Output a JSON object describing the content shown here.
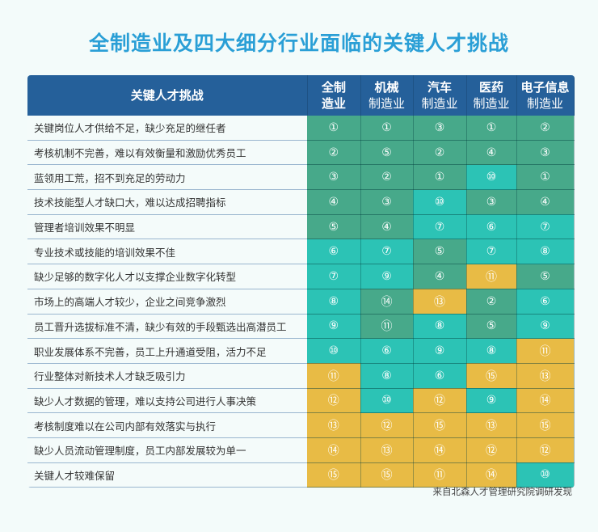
{
  "title": "全制造业及四大细分行业面临的关键人才挑战",
  "source": "来自北森人才管理研究院调研发现",
  "colors": {
    "G": "#47a98a",
    "T": "#2cc3b5",
    "Y": "#e8bb45",
    "header": "#25609a",
    "title": "#2a9fd6"
  },
  "chart_data": {
    "type": "table",
    "row_header": "关键人才挑战",
    "columns": [
      {
        "l1": "全制",
        "l2": "造业"
      },
      {
        "l1": "机械",
        "l2": "制造业"
      },
      {
        "l1": "汽车",
        "l2": "制造业"
      },
      {
        "l1": "医药",
        "l2": "制造业"
      },
      {
        "l1": "电子信息",
        "l2": "制造业"
      }
    ],
    "rows": [
      {
        "label": "关键岗位人才供给不足，缺少充足的继任者",
        "ranks": [
          "①",
          "①",
          "③",
          "①",
          "②"
        ],
        "colors": [
          "G",
          "G",
          "G",
          "G",
          "G"
        ]
      },
      {
        "label": "考核机制不完善，难以有效衡量和激励优秀员工",
        "ranks": [
          "②",
          "⑤",
          "②",
          "④",
          "③"
        ],
        "colors": [
          "G",
          "G",
          "G",
          "G",
          "G"
        ]
      },
      {
        "label": "蓝领用工荒，招不到充足的劳动力",
        "ranks": [
          "③",
          "②",
          "①",
          "⑩",
          "①"
        ],
        "colors": [
          "G",
          "G",
          "G",
          "T",
          "G"
        ]
      },
      {
        "label": "技术技能型人才缺口大，难以达成招聘指标",
        "ranks": [
          "④",
          "③",
          "⑩",
          "③",
          "④"
        ],
        "colors": [
          "G",
          "G",
          "T",
          "G",
          "G"
        ]
      },
      {
        "label": "管理者培训效果不明显",
        "ranks": [
          "⑤",
          "④",
          "⑦",
          "⑥",
          "⑦"
        ],
        "colors": [
          "G",
          "G",
          "T",
          "T",
          "T"
        ]
      },
      {
        "label": "专业技术或技能的培训效果不佳",
        "ranks": [
          "⑥",
          "⑦",
          "⑤",
          "⑦",
          "⑧"
        ],
        "colors": [
          "T",
          "T",
          "G",
          "T",
          "T"
        ]
      },
      {
        "label": "缺少足够的数字化人才以支撑企业数字化转型",
        "ranks": [
          "⑦",
          "⑨",
          "④",
          "⑪",
          "⑤"
        ],
        "colors": [
          "T",
          "T",
          "G",
          "Y",
          "G"
        ]
      },
      {
        "label": "市场上的高端人才较少，企业之间竞争激烈",
        "ranks": [
          "⑧",
          "⑭",
          "⑬",
          "②",
          "⑥"
        ],
        "colors": [
          "T",
          "G",
          "Y",
          "G",
          "T"
        ]
      },
      {
        "label": "员工晋升选拔标准不清，缺少有效的手段甄选出高潜员工",
        "ranks": [
          "⑨",
          "⑪",
          "⑧",
          "⑤",
          "⑨"
        ],
        "colors": [
          "T",
          "G",
          "T",
          "G",
          "T"
        ]
      },
      {
        "label": "职业发展体系不完善，员工上升通道受阻，活力不足",
        "ranks": [
          "⑩",
          "⑥",
          "⑨",
          "⑧",
          "⑪"
        ],
        "colors": [
          "T",
          "T",
          "T",
          "T",
          "Y"
        ]
      },
      {
        "label": "行业整体对新技术人才缺乏吸引力",
        "ranks": [
          "⑪",
          "⑧",
          "⑥",
          "⑮",
          "⑬"
        ],
        "colors": [
          "Y",
          "T",
          "T",
          "Y",
          "Y"
        ]
      },
      {
        "label": "缺少人才数据的管理，难以支持公司进行人事决策",
        "ranks": [
          "⑫",
          "⑩",
          "⑫",
          "⑨",
          "⑭"
        ],
        "colors": [
          "Y",
          "T",
          "Y",
          "T",
          "Y"
        ]
      },
      {
        "label": "考核制度难以在公司内部有效落实与执行",
        "ranks": [
          "⑬",
          "⑫",
          "⑮",
          "⑬",
          "⑮"
        ],
        "colors": [
          "Y",
          "Y",
          "Y",
          "Y",
          "Y"
        ]
      },
      {
        "label": "缺少人员流动管理制度，员工内部发展较为单一",
        "ranks": [
          "⑭",
          "⑬",
          "⑭",
          "⑫",
          "⑫"
        ],
        "colors": [
          "Y",
          "Y",
          "Y",
          "Y",
          "Y"
        ]
      },
      {
        "label": "关键人才较难保留",
        "ranks": [
          "⑮",
          "⑮",
          "⑪",
          "⑭",
          "⑩"
        ],
        "colors": [
          "Y",
          "Y",
          "Y",
          "Y",
          "T"
        ]
      }
    ]
  }
}
